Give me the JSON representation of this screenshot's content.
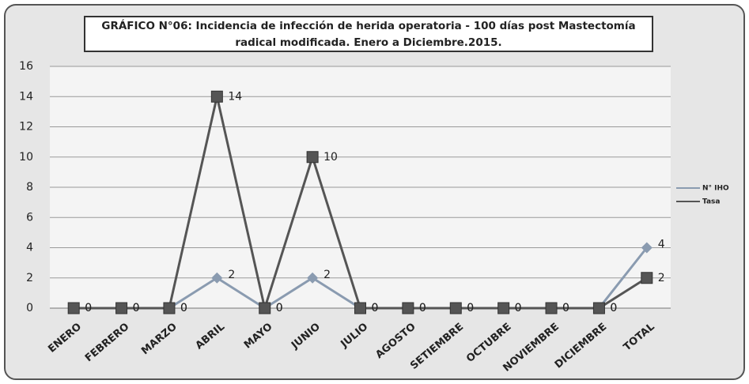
{
  "chart_data": {
    "type": "line",
    "title": "GRÁFICO N°06: Incidencia de infección de herida operatoria - 100 días post Mastectomía radical modificada. Enero a Diciembre.2015.",
    "categories": [
      "ENERO",
      "FEBRERO",
      "MARZO",
      "ABRIL",
      "MAYO",
      "JUNIO",
      "JULIO",
      "AGOSTO",
      "SETIEMBRE",
      "OCTUBRE",
      "NOVIEMBRE",
      "DICIEMBRE",
      "TOTAL"
    ],
    "series": [
      {
        "name": "N° IHO",
        "color": "#8a9bb0",
        "marker": "diamond",
        "values": [
          0,
          0,
          0,
          2,
          0,
          2,
          0,
          0,
          0,
          0,
          0,
          0,
          4
        ]
      },
      {
        "name": "Tasa",
        "color": "#555555",
        "marker": "square",
        "values": [
          0,
          0,
          0,
          14,
          0,
          10,
          0,
          0,
          0,
          0,
          0,
          0,
          2
        ]
      }
    ],
    "ylim": [
      0,
      16
    ],
    "yticks": [
      0,
      2,
      4,
      6,
      8,
      10,
      12,
      14,
      16
    ],
    "grid": true,
    "legend": "right"
  }
}
